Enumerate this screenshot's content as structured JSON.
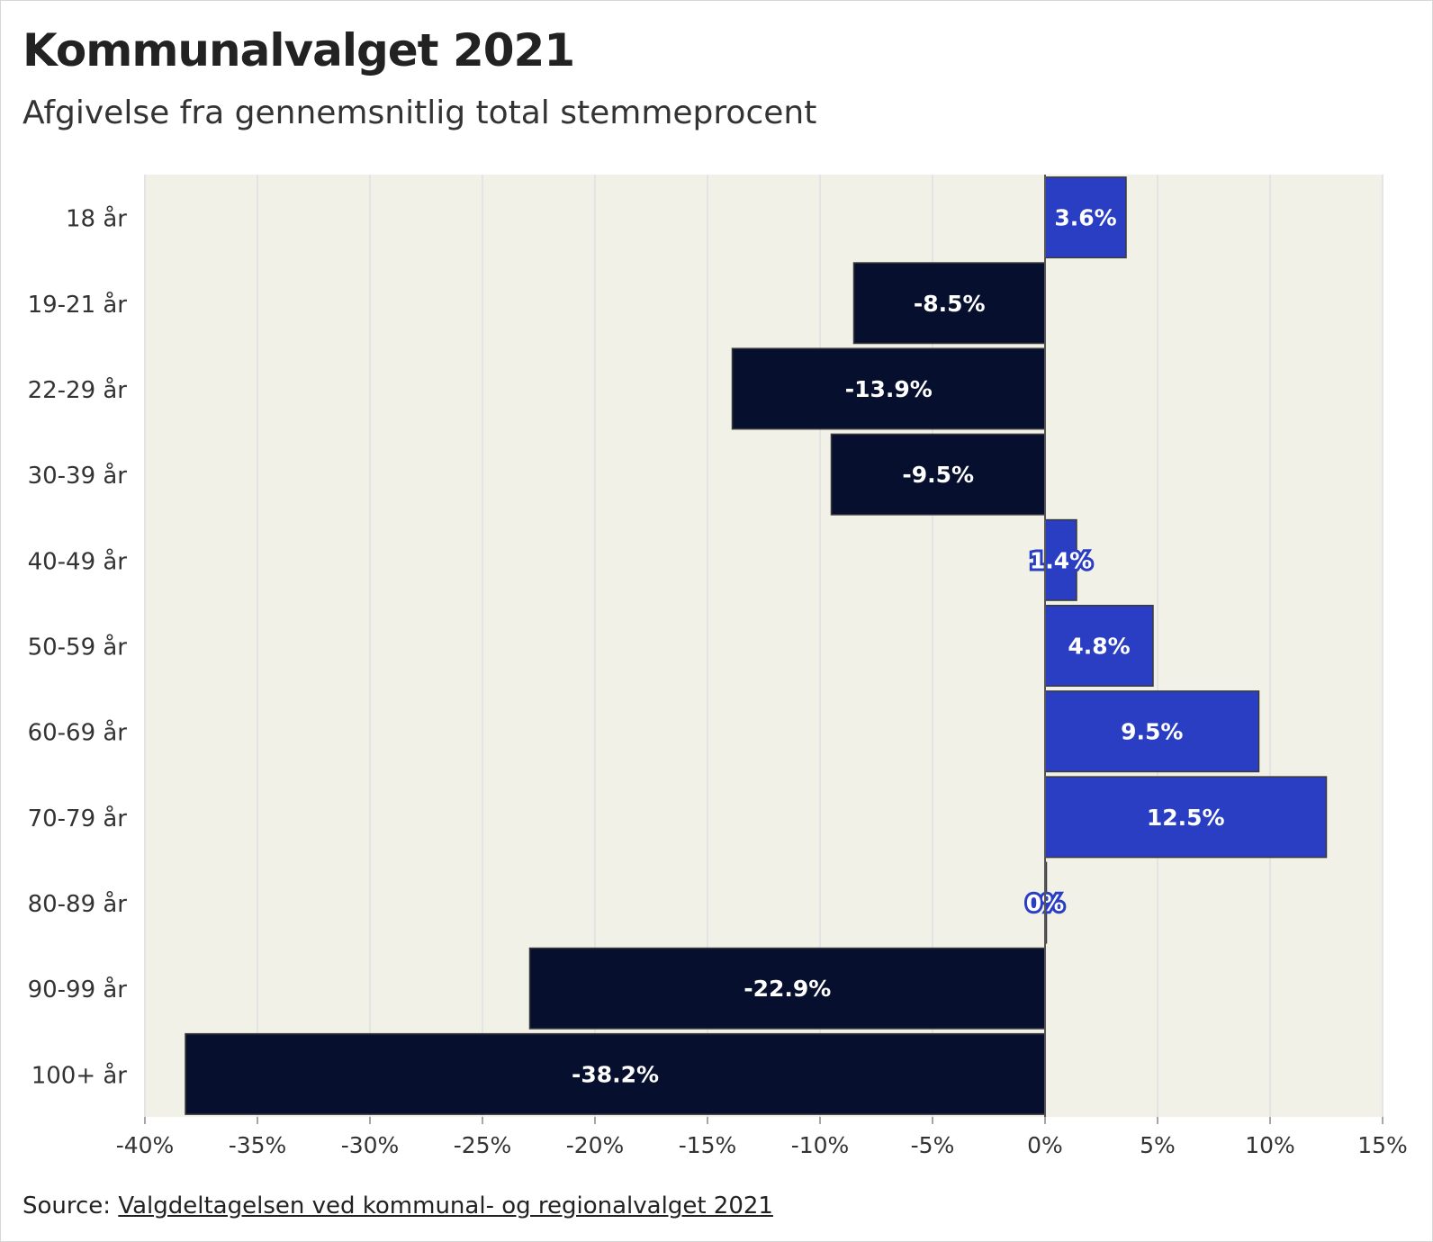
{
  "header": {
    "title": "Kommunalvalget 2021",
    "subtitle": "Afgivelse fra gennemsnitlig total stemmeprocent"
  },
  "footer": {
    "source_prefix": "Source: ",
    "source_link": "Valgdeltagelsen ved kommunal- og regionalvalget 2021"
  },
  "colors": {
    "positive": "#2a3ec4",
    "negative": "#060f2e",
    "panel": "#f2f1e7",
    "grid": "#e4e4e4"
  },
  "chart_data": {
    "type": "bar",
    "orientation": "horizontal",
    "categories": [
      "18 år",
      "19-21 år",
      "22-29 år",
      "30-39 år",
      "40-49 år",
      "50-59 år",
      "60-69 år",
      "70-79 år",
      "80-89 år",
      "90-99 år",
      "100+ år"
    ],
    "values": [
      3.6,
      -8.5,
      -13.9,
      -9.5,
      1.4,
      4.8,
      9.5,
      12.5,
      0,
      -22.9,
      -38.2
    ],
    "data_labels": [
      "3.6%",
      "-8.5%",
      "-13.9%",
      "-9.5%",
      "1.4%",
      "4.8%",
      "9.5%",
      "12.5%",
      "0%",
      "-22.9%",
      "-38.2%"
    ],
    "x_ticks": [
      -40,
      -35,
      -30,
      -25,
      -20,
      -15,
      -10,
      -5,
      0,
      5,
      10,
      15
    ],
    "x_tick_labels": [
      "-40%",
      "-35%",
      "-30%",
      "-25%",
      "-20%",
      "-15%",
      "-10%",
      "-5%",
      "0%",
      "5%",
      "10%",
      "15%"
    ],
    "xlim": [
      -40,
      15
    ],
    "xlabel": "",
    "ylabel": "",
    "grid": true,
    "legend": false
  }
}
